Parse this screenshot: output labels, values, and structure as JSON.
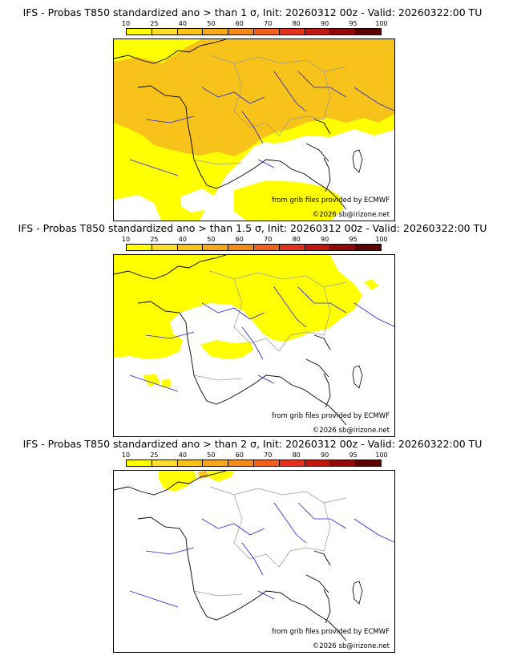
{
  "panels": [
    {
      "title": "IFS - Probas T850  standardized ano > than 1 σ, Init: 20260312 00z - Valid: 20260322:00 TU",
      "source_note": "from grib files provided by ECMWF",
      "copyright": "©2026 sb@irizone.net",
      "dominant_color": "#f7c21a"
    },
    {
      "title": "IFS - Probas T850  standardized ano > than 1.5 σ, Init: 20260312 00z - Valid: 20260322:00 TU",
      "source_note": "from grib files provided by ECMWF",
      "copyright": "©2026 sb@irizone.net",
      "dominant_color": "#ffff00"
    },
    {
      "title": "IFS - Probas T850  standardized ano > than 2 σ, Init: 20260312 00z - Valid: 20260322:00 TU",
      "source_note": "from grib files provided by ECMWF",
      "copyright": "©2026 sb@irizone.net",
      "dominant_color": "#ffff00"
    }
  ],
  "legend": {
    "ticks": [
      "10",
      "25",
      "40",
      "50",
      "60",
      "70",
      "80",
      "90",
      "95",
      "100"
    ],
    "colors": [
      "#ffff00",
      "#ffde30",
      "#f7c21a",
      "#f5a81c",
      "#f28a1c",
      "#f0621c",
      "#e0321c",
      "#c01810",
      "#8f0a08",
      "#5a0404"
    ]
  },
  "map_colors": {
    "land_line": "#000000",
    "river": "#2222dd",
    "border": "#aaaaaa"
  }
}
